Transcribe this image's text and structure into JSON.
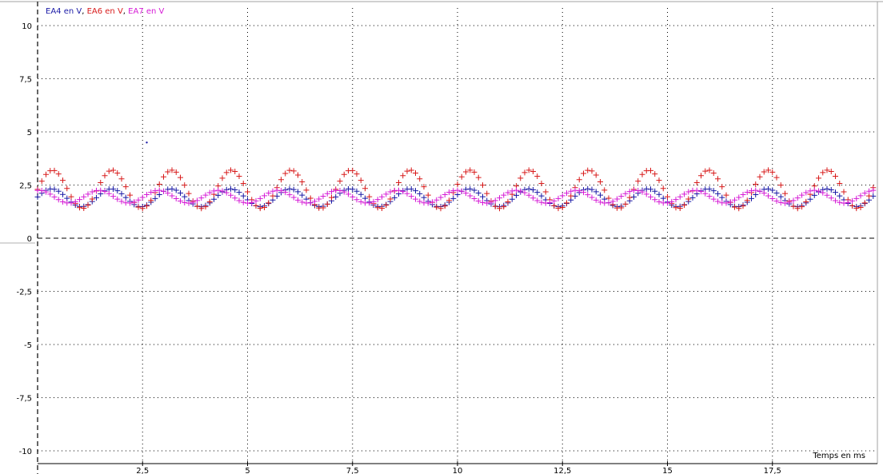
{
  "chart_data": {
    "type": "scatter",
    "title": "",
    "legend": [
      {
        "text": "EA4 en V",
        "color": "#1a1aa6"
      },
      {
        "text": ", ",
        "color": "#000000"
      },
      {
        "text": "EA6 en V",
        "color": "#d81b1b"
      },
      {
        "text": ", ",
        "color": "#000000"
      },
      {
        "text": "EA7 en V",
        "color": "#d61bd6"
      }
    ],
    "legend_position": "top-left",
    "xlabel": "Temps en ms",
    "ylabel": "",
    "xlim": [
      0,
      20
    ],
    "ylim": [
      -10.5,
      11
    ],
    "x_ticks": [
      0,
      2.5,
      5,
      7.5,
      10,
      12.5,
      15,
      17.5
    ],
    "x_tick_labels": [
      "",
      "2,5",
      "5",
      "7,5",
      "10",
      "12,5",
      "15",
      "17,5"
    ],
    "y_ticks": [
      10,
      7.5,
      5,
      2.5,
      0,
      -2.5,
      -5,
      -7.5,
      -10
    ],
    "y_tick_labels": [
      "10",
      "7,5",
      "5",
      "2,5",
      "0",
      "-2,5",
      "-5",
      "-7,5",
      "-10"
    ],
    "grid": true,
    "zero_line": true,
    "sample_step_ms": 0.1,
    "series": [
      {
        "name": "EA4 en V",
        "color": "#1a1aa6",
        "marker": "+",
        "offset": 1.9,
        "amplitude": 0.42,
        "period_ms": 1.42,
        "phase": 0.1
      },
      {
        "name": "EA6 en V",
        "color": "#d81b1b",
        "marker": "+",
        "offset": 2.3,
        "amplitude": 0.9,
        "period_ms": 1.42,
        "phase": 0.0
      },
      {
        "name": "EA7 en V",
        "color": "#d61bd6",
        "marker": "+",
        "offset": 1.95,
        "amplitude": 0.3,
        "period_ms": 1.42,
        "phase": 1.4
      }
    ],
    "outlier_point": {
      "x": 2.6,
      "y": 4.5,
      "color": "#1a1aa6"
    }
  }
}
